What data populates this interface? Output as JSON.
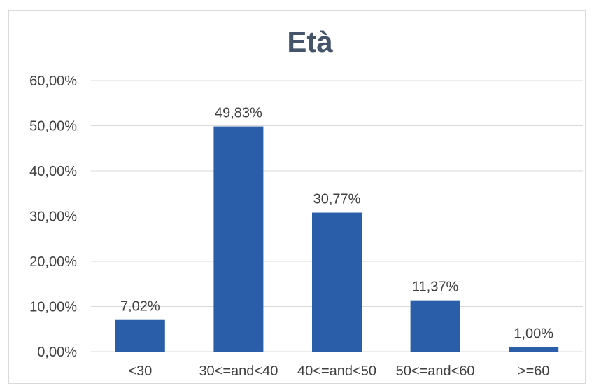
{
  "chart_data": {
    "type": "bar",
    "title": "Età",
    "xlabel": "",
    "ylabel": "",
    "categories": [
      "<30",
      "30<=and<40",
      "40<=and<50",
      "50<=and<60",
      ">=60"
    ],
    "values": [
      7.02,
      49.83,
      30.77,
      11.37,
      1.0
    ],
    "data_labels": [
      "7,02%",
      "49,83%",
      "30,77%",
      "11,37%",
      "1,00%"
    ],
    "ylim": [
      0,
      60
    ],
    "yticks": [
      0,
      10,
      20,
      30,
      40,
      50,
      60
    ],
    "ytick_labels": [
      "0,00%",
      "10,00%",
      "20,00%",
      "30,00%",
      "40,00%",
      "50,00%",
      "60,00%"
    ],
    "grid": true,
    "legend": "none",
    "colors": {
      "bar": "#2a5ea8",
      "grid": "#d9d9d9",
      "title": "#44546a",
      "text": "#404040"
    }
  }
}
